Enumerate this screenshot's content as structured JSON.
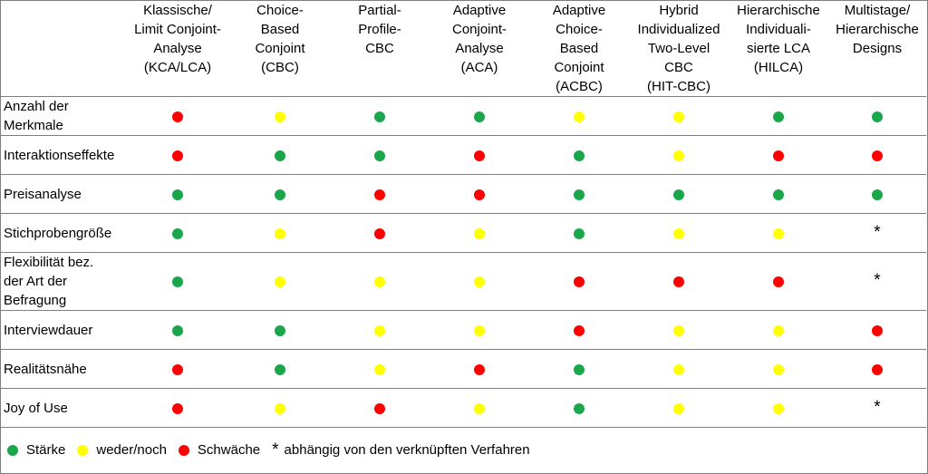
{
  "columns": [
    "Klassische/\nLimit Conjoint-\nAnalyse\n(KCA/LCA)",
    "Choice-\nBased\nConjoint\n(CBC)",
    "Partial-\nProfile-\nCBC",
    "Adaptive\nConjoint-\nAnalyse\n(ACA)",
    "Adaptive\nChoice-\nBased\nConjoint\n(ACBC)",
    "Hybrid\nIndividualized\nTwo-Level\nCBC\n(HIT-CBC)",
    "Hierarchische\nIndividuali-\nsierte LCA\n(HILCA)",
    "Multistage/\nHierarchische\nDesigns"
  ],
  "rows": [
    {
      "label": "Anzahl der\nMerkmale",
      "values": [
        "w",
        "n",
        "s",
        "s",
        "n",
        "n",
        "s",
        "s"
      ]
    },
    {
      "label": "Interaktionseffekte",
      "values": [
        "w",
        "s",
        "s",
        "w",
        "s",
        "n",
        "w",
        "w"
      ]
    },
    {
      "label": "Preisanalyse",
      "values": [
        "s",
        "s",
        "w",
        "w",
        "s",
        "s",
        "s",
        "s"
      ]
    },
    {
      "label": "Stichprobengröße",
      "values": [
        "s",
        "n",
        "w",
        "n",
        "s",
        "n",
        "n",
        "*"
      ]
    },
    {
      "label": "Flexibilität bez.\nder Art der\nBefragung",
      "values": [
        "s",
        "n",
        "n",
        "n",
        "w",
        "w",
        "w",
        "*"
      ]
    },
    {
      "label": "Interviewdauer",
      "values": [
        "s",
        "s",
        "n",
        "n",
        "w",
        "n",
        "n",
        "w"
      ]
    },
    {
      "label": "Realitätsnähe",
      "values": [
        "w",
        "s",
        "n",
        "w",
        "s",
        "n",
        "n",
        "w"
      ]
    },
    {
      "label": "Joy of Use",
      "values": [
        "w",
        "n",
        "w",
        "n",
        "s",
        "n",
        "n",
        "*"
      ]
    }
  ],
  "legend": {
    "strength": "Stärke",
    "neutral": "weder/noch",
    "weakness": "Schwäche",
    "star_symbol": "*",
    "star_text": "abhängig von den verknüpften Verfahren"
  },
  "colors": {
    "strength": "#1aa64a",
    "neutral": "#ffff00",
    "weakness": "#ff0000",
    "border": "#7f7f7f"
  }
}
